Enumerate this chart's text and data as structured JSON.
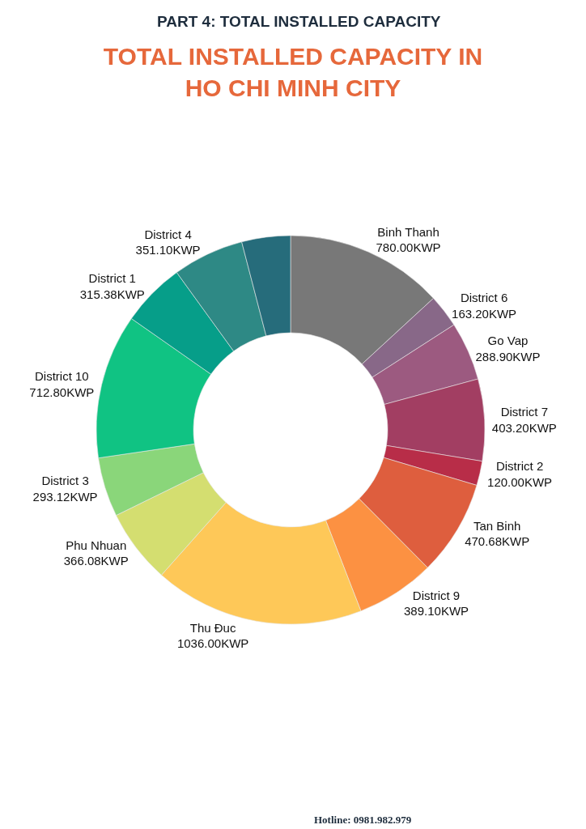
{
  "chart_data": {
    "type": "donut",
    "title": "TOTAL INSTALLED CAPACITY IN\nHO CHI MINH CITY",
    "annotations": [
      "PART 4: TOTAL INSTALLED CAPACITY",
      "Hotline: 0981.982.979"
    ],
    "categories": [
      "Binh Thanh",
      "District 6",
      "Go Vap",
      "District 7",
      "District 2",
      "Tan Binh",
      "District 9",
      "Thu Đuc",
      "Phu Nhuan",
      "District 3",
      "District 10",
      "District 1",
      "District 4",
      null
    ],
    "values": [
      780.0,
      163.2,
      288.9,
      403.2,
      120.0,
      470.68,
      389.1,
      1036.0,
      366.08,
      293.12,
      712.8,
      315.38,
      351.1,
      240
    ],
    "value_labels": [
      "780.00KWP",
      "163.20KWP",
      "288.90KWP",
      "403.20KWP",
      "120.00KWP",
      "470.68KWP",
      "389.10KWP",
      "1036.00KWP",
      "366.08KWP",
      "293.12KWP",
      "712.80KWP",
      "315.38KWP",
      "351.10KWP",
      null
    ],
    "colors": [
      "#787878",
      "#886888",
      "#9c5a80",
      "#a23e62",
      "#b82d48",
      "#de5e3e",
      "#fc9142",
      "#fec858",
      "#d4de70",
      "#8ad67a",
      "#10c383",
      "#069e89",
      "#2e8985",
      "#266c7b"
    ]
  }
}
